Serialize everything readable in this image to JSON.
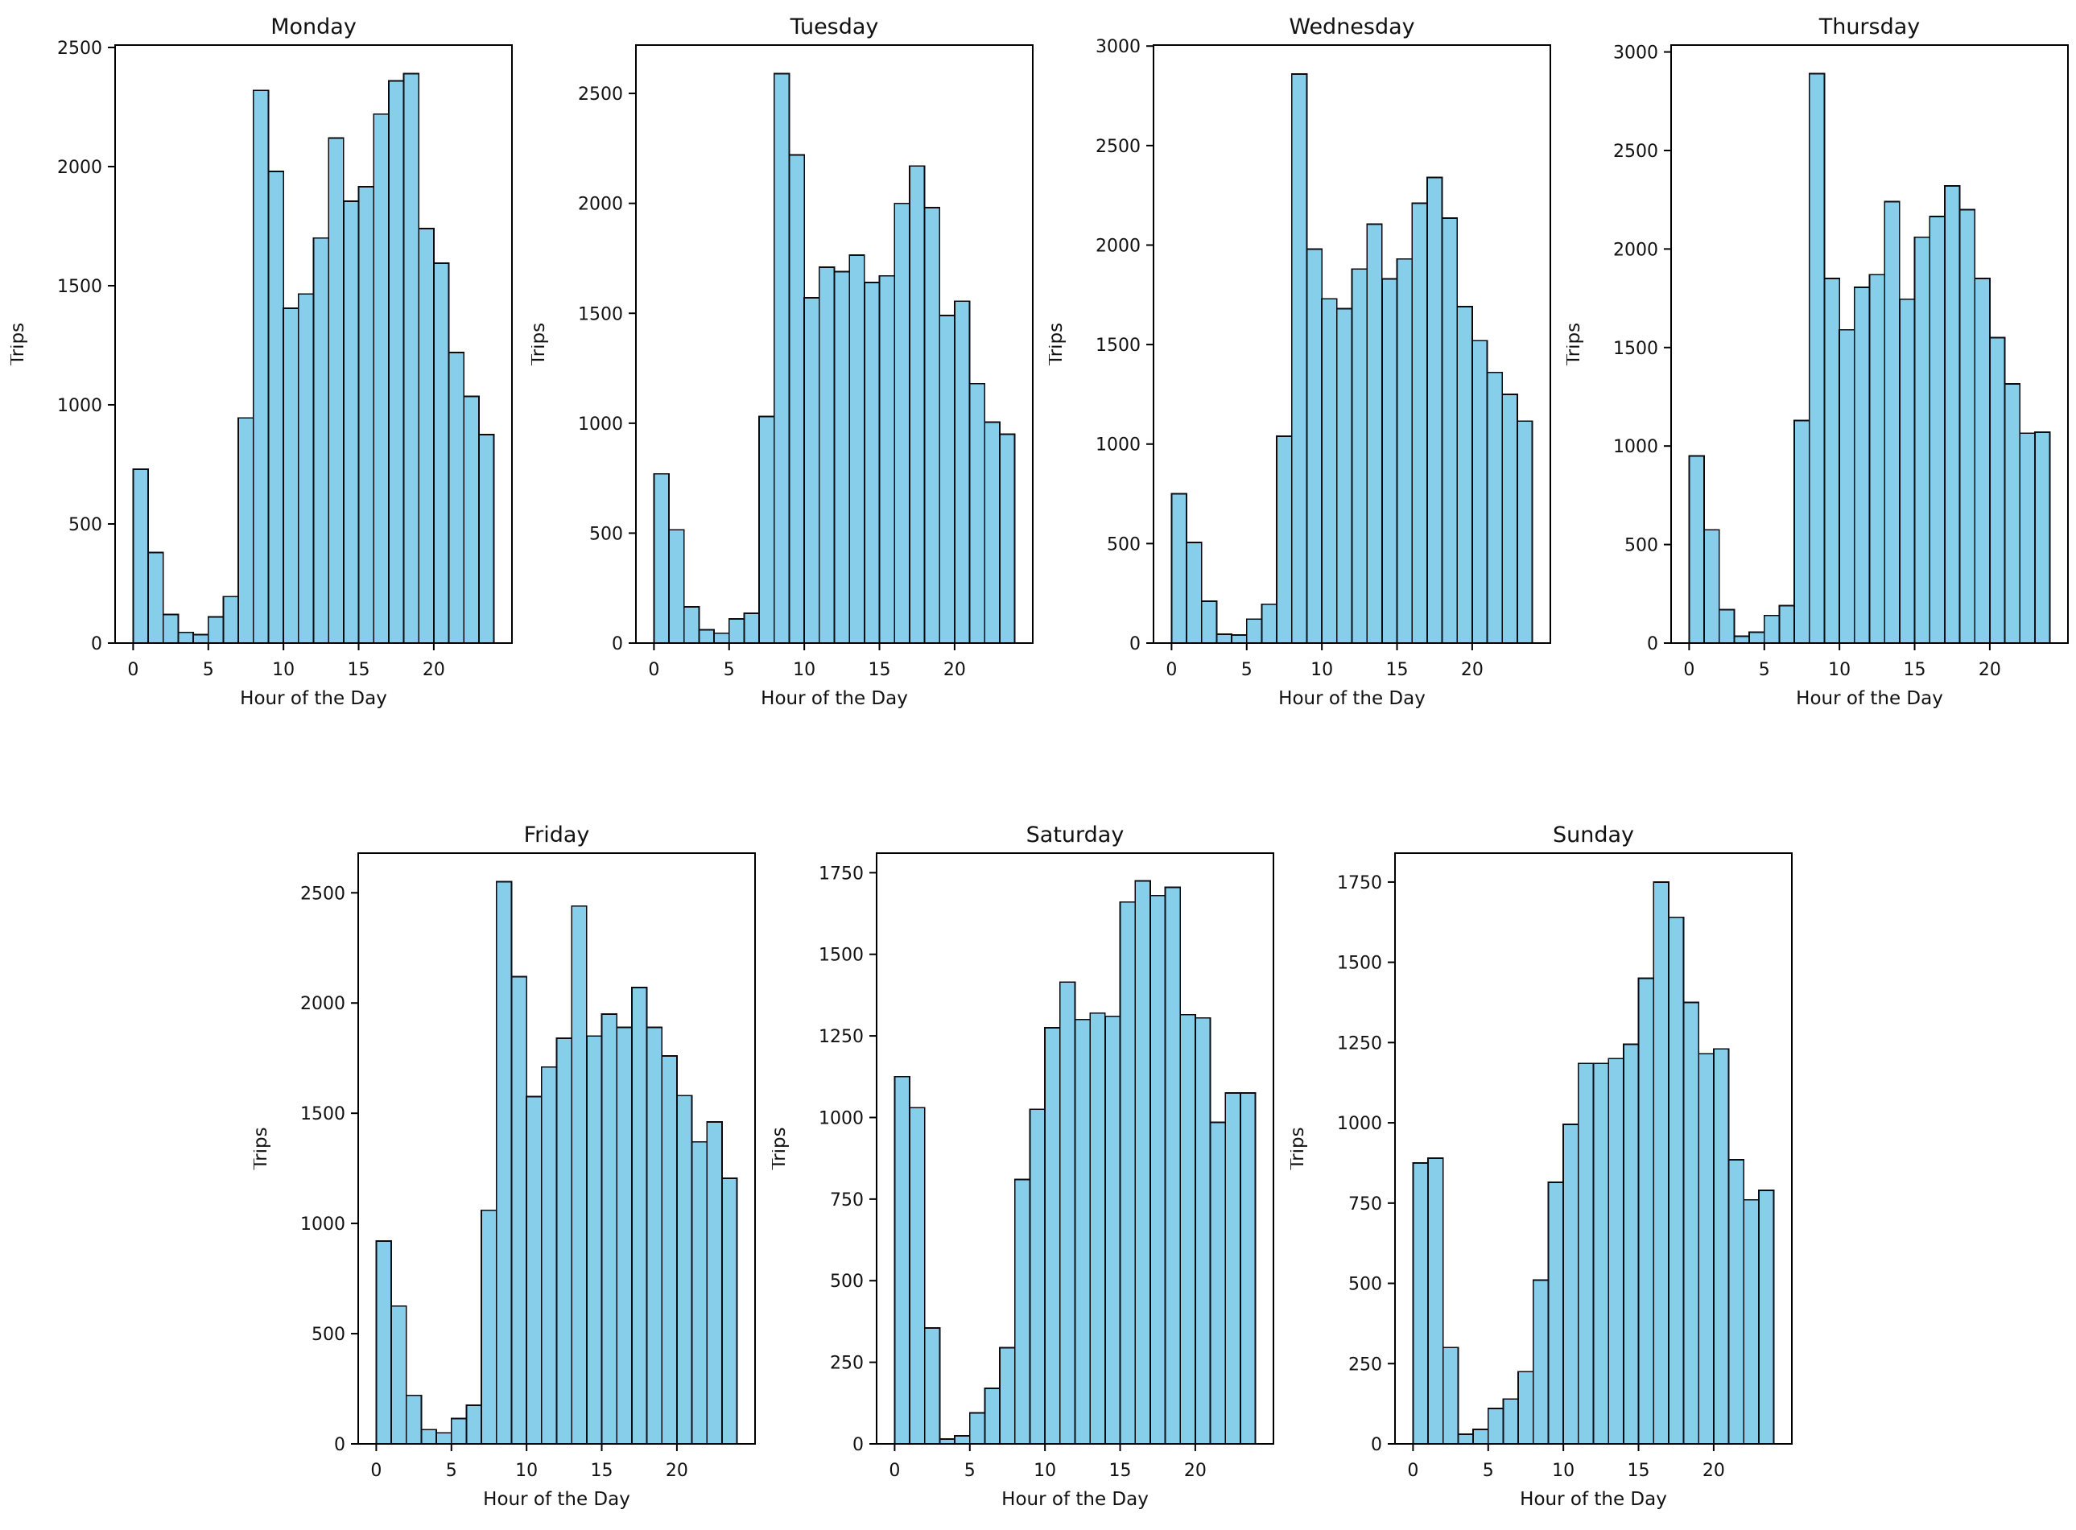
{
  "figure": {
    "background": "#ffffff",
    "bar_fill": "#87ceeb",
    "bar_edge": "#0b0b12",
    "text_color": "#111111",
    "spine_color": "#000000"
  },
  "chart_data": [
    {
      "type": "bar",
      "title": "Monday",
      "xlabel": "Hour of the Day",
      "ylabel": "Trips",
      "categories": [
        0,
        1,
        2,
        3,
        4,
        5,
        6,
        7,
        8,
        9,
        10,
        11,
        12,
        13,
        14,
        15,
        16,
        17,
        18,
        19,
        20,
        21,
        22,
        23
      ],
      "values": [
        730,
        380,
        120,
        45,
        35,
        110,
        195,
        945,
        2320,
        1980,
        1405,
        1465,
        1700,
        2120,
        1855,
        1915,
        2220,
        2360,
        2390,
        1740,
        1595,
        1220,
        1035,
        875
      ],
      "yticks": [
        0,
        500,
        1000,
        1500,
        2000,
        2500
      ],
      "xticks": [
        0,
        5,
        10,
        15,
        20
      ],
      "ylim": [
        0,
        2510
      ],
      "xlim": [
        -1.2,
        25.2
      ],
      "grid": false
    },
    {
      "type": "bar",
      "title": "Tuesday",
      "xlabel": "Hour of the Day",
      "ylabel": "Trips",
      "categories": [
        0,
        1,
        2,
        3,
        4,
        5,
        6,
        7,
        8,
        9,
        10,
        11,
        12,
        13,
        14,
        15,
        16,
        17,
        18,
        19,
        20,
        21,
        22,
        23
      ],
      "values": [
        770,
        515,
        165,
        60,
        45,
        110,
        135,
        1030,
        2590,
        2220,
        1570,
        1710,
        1690,
        1765,
        1640,
        1670,
        2000,
        2170,
        1980,
        1490,
        1555,
        1180,
        1005,
        950
      ],
      "yticks": [
        0,
        500,
        1000,
        1500,
        2000,
        2500
      ],
      "xticks": [
        0,
        5,
        10,
        15,
        20
      ],
      "ylim": [
        0,
        2720
      ],
      "xlim": [
        -1.2,
        25.2
      ],
      "grid": false
    },
    {
      "type": "bar",
      "title": "Wednesday",
      "xlabel": "Hour of the Day",
      "ylabel": "Trips",
      "categories": [
        0,
        1,
        2,
        3,
        4,
        5,
        6,
        7,
        8,
        9,
        10,
        11,
        12,
        13,
        14,
        15,
        16,
        17,
        18,
        19,
        20,
        21,
        22,
        23
      ],
      "values": [
        750,
        505,
        210,
        45,
        40,
        120,
        195,
        1040,
        2860,
        1980,
        1730,
        1680,
        1880,
        2105,
        1830,
        1930,
        2210,
        2340,
        2135,
        1690,
        1520,
        1360,
        1250,
        1115
      ],
      "yticks": [
        0,
        500,
        1000,
        1500,
        2000,
        2500,
        3000
      ],
      "xticks": [
        0,
        5,
        10,
        15,
        20
      ],
      "ylim": [
        0,
        3005
      ],
      "xlim": [
        -1.2,
        25.2
      ],
      "grid": false
    },
    {
      "type": "bar",
      "title": "Thursday",
      "xlabel": "Hour of the Day",
      "ylabel": "Trips",
      "categories": [
        0,
        1,
        2,
        3,
        4,
        5,
        6,
        7,
        8,
        9,
        10,
        11,
        12,
        13,
        14,
        15,
        16,
        17,
        18,
        19,
        20,
        21,
        22,
        23
      ],
      "values": [
        950,
        575,
        170,
        35,
        55,
        140,
        190,
        1130,
        2890,
        1850,
        1590,
        1805,
        1870,
        2240,
        1745,
        2060,
        2165,
        2320,
        2200,
        1850,
        1550,
        1315,
        1065,
        1070
      ],
      "yticks": [
        0,
        500,
        1000,
        1500,
        2000,
        2500,
        3000
      ],
      "xticks": [
        0,
        5,
        10,
        15,
        20
      ],
      "ylim": [
        0,
        3035
      ],
      "xlim": [
        -1.2,
        25.2
      ],
      "grid": false
    },
    {
      "type": "bar",
      "title": "Friday",
      "xlabel": "Hour of the Day",
      "ylabel": "Trips",
      "categories": [
        0,
        1,
        2,
        3,
        4,
        5,
        6,
        7,
        8,
        9,
        10,
        11,
        12,
        13,
        14,
        15,
        16,
        17,
        18,
        19,
        20,
        21,
        22,
        23
      ],
      "values": [
        920,
        625,
        220,
        65,
        50,
        115,
        175,
        1060,
        2550,
        2120,
        1575,
        1710,
        1840,
        2440,
        1850,
        1950,
        1890,
        2070,
        1890,
        1760,
        1580,
        1370,
        1460,
        1205
      ],
      "yticks": [
        0,
        500,
        1000,
        1500,
        2000,
        2500
      ],
      "xticks": [
        0,
        5,
        10,
        15,
        20
      ],
      "ylim": [
        0,
        2680
      ],
      "xlim": [
        -1.2,
        25.2
      ],
      "grid": false
    },
    {
      "type": "bar",
      "title": "Saturday",
      "xlabel": "Hour of the Day",
      "ylabel": "Trips",
      "categories": [
        0,
        1,
        2,
        3,
        4,
        5,
        6,
        7,
        8,
        9,
        10,
        11,
        12,
        13,
        14,
        15,
        16,
        17,
        18,
        19,
        20,
        21,
        22,
        23
      ],
      "values": [
        1125,
        1030,
        355,
        15,
        25,
        95,
        170,
        295,
        810,
        1025,
        1275,
        1415,
        1300,
        1320,
        1310,
        1660,
        1725,
        1680,
        1705,
        1315,
        1305,
        985,
        1075,
        1075
      ],
      "yticks": [
        0,
        250,
        500,
        750,
        1000,
        1250,
        1500,
        1750
      ],
      "xticks": [
        0,
        5,
        10,
        15,
        20
      ],
      "ylim": [
        0,
        1810
      ],
      "xlim": [
        -1.2,
        25.2
      ],
      "grid": false
    },
    {
      "type": "bar",
      "title": "Sunday",
      "xlabel": "Hour of the Day",
      "ylabel": "Trips",
      "categories": [
        0,
        1,
        2,
        3,
        4,
        5,
        6,
        7,
        8,
        9,
        10,
        11,
        12,
        13,
        14,
        15,
        16,
        17,
        18,
        19,
        20,
        21,
        22,
        23
      ],
      "values": [
        875,
        890,
        300,
        30,
        45,
        110,
        140,
        225,
        510,
        815,
        995,
        1185,
        1185,
        1200,
        1245,
        1450,
        1750,
        1640,
        1375,
        1215,
        1230,
        885,
        760,
        790
      ],
      "yticks": [
        0,
        250,
        500,
        750,
        1000,
        1250,
        1500,
        1750
      ],
      "xticks": [
        0,
        5,
        10,
        15,
        20
      ],
      "ylim": [
        0,
        1840
      ],
      "xlim": [
        -1.2,
        25.2
      ],
      "grid": false
    }
  ]
}
